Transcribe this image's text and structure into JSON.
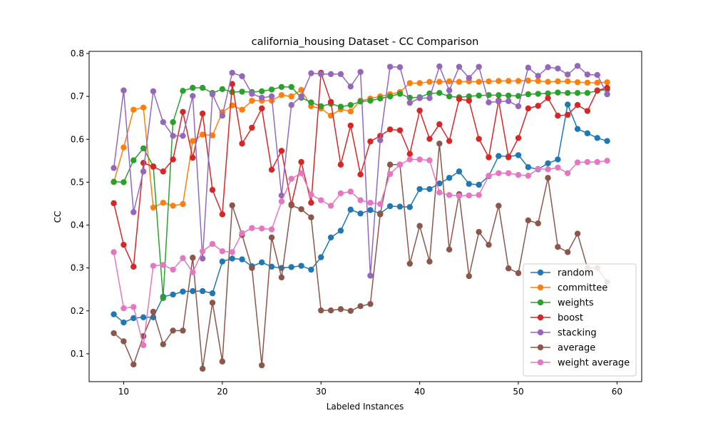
{
  "chart_data": {
    "type": "line",
    "title": "california_housing Dataset - CC Comparison",
    "xlabel": "Labeled Instances",
    "ylabel": "CC",
    "xlim": [
      6.5,
      62.5
    ],
    "ylim": [
      0.035,
      0.805
    ],
    "xticks": [
      10,
      20,
      30,
      40,
      50,
      60
    ],
    "yticks": [
      0.1,
      0.2,
      0.3,
      0.4,
      0.5,
      0.6,
      0.7,
      0.8
    ],
    "legend_position": "lower right",
    "grid": false,
    "x": [
      9,
      10,
      11,
      12,
      13,
      14,
      15,
      16,
      17,
      18,
      19,
      20,
      21,
      22,
      23,
      24,
      25,
      26,
      27,
      28,
      29,
      30,
      31,
      32,
      33,
      34,
      35,
      36,
      37,
      38,
      39,
      40,
      41,
      42,
      43,
      44,
      45,
      46,
      47,
      48,
      49,
      50,
      51,
      52,
      53,
      54,
      55,
      56,
      57,
      58,
      59
    ],
    "series": [
      {
        "name": "random",
        "color": "#1f77b4",
        "values": [
          0.192,
          0.173,
          0.183,
          0.185,
          0.185,
          0.233,
          0.238,
          0.245,
          0.246,
          0.246,
          0.241,
          0.315,
          0.322,
          0.32,
          0.304,
          0.313,
          0.303,
          0.3,
          0.302,
          0.305,
          0.296,
          0.325,
          0.371,
          0.387,
          0.436,
          0.427,
          0.435,
          0.427,
          0.444,
          0.443,
          0.442,
          0.484,
          0.484,
          0.497,
          0.51,
          0.525,
          0.496,
          0.494,
          0.514,
          0.561,
          0.56,
          0.563,
          0.535,
          0.53,
          0.544,
          0.553,
          0.681,
          0.624,
          0.614,
          0.603,
          0.596
        ]
      },
      {
        "name": "committee",
        "color": "#ff7f0e",
        "values": [
          0.5,
          0.581,
          0.669,
          0.674,
          0.441,
          0.452,
          0.445,
          0.449,
          0.596,
          0.611,
          0.609,
          0.663,
          0.679,
          0.669,
          0.69,
          0.69,
          0.69,
          0.703,
          0.7,
          0.715,
          0.677,
          0.672,
          0.655,
          0.67,
          0.665,
          0.69,
          0.695,
          0.7,
          0.705,
          0.71,
          0.731,
          0.731,
          0.734,
          0.734,
          0.735,
          0.734,
          0.735,
          0.734,
          0.735,
          0.736,
          0.736,
          0.736,
          0.737,
          0.736,
          0.734,
          0.735,
          0.735,
          0.733,
          0.732,
          0.732,
          0.733
        ]
      },
      {
        "name": "weights",
        "color": "#2ca02c",
        "values": [
          0.501,
          0.5,
          0.551,
          0.579,
          0.537,
          0.23,
          0.64,
          0.713,
          0.72,
          0.72,
          0.708,
          0.717,
          0.71,
          0.711,
          0.71,
          0.712,
          0.716,
          0.722,
          0.722,
          0.697,
          0.686,
          0.677,
          0.683,
          0.676,
          0.68,
          0.688,
          0.69,
          0.695,
          0.7,
          0.706,
          0.697,
          0.698,
          0.707,
          0.708,
          0.7,
          0.698,
          0.7,
          0.702,
          0.703,
          0.703,
          0.702,
          0.701,
          0.705,
          0.706,
          0.707,
          0.709,
          0.708,
          0.708,
          0.708,
          0.713,
          0.716
        ]
      },
      {
        "name": "boost",
        "color": "#d62728",
        "values": [
          0.451,
          0.354,
          0.303,
          0.545,
          0.536,
          0.525,
          0.553,
          0.664,
          0.557,
          0.66,
          0.482,
          0.425,
          0.729,
          0.59,
          0.627,
          0.672,
          0.529,
          0.573,
          0.448,
          0.547,
          0.452,
          0.755,
          0.687,
          0.541,
          0.632,
          0.518,
          0.595,
          0.608,
          0.623,
          0.621,
          0.566,
          0.667,
          0.601,
          0.635,
          0.596,
          0.694,
          0.69,
          0.601,
          0.558,
          0.69,
          0.558,
          0.603,
          0.672,
          0.678,
          0.696,
          0.655,
          0.657,
          0.68,
          0.666,
          0.714,
          0.72
        ]
      },
      {
        "name": "stacking",
        "color": "#9467bd",
        "values": [
          0.533,
          0.714,
          0.43,
          0.525,
          0.712,
          0.64,
          0.608,
          0.608,
          0.701,
          0.322,
          0.705,
          0.655,
          0.755,
          0.747,
          0.706,
          0.697,
          0.7,
          0.469,
          0.68,
          0.7,
          0.754,
          0.752,
          0.752,
          0.752,
          0.723,
          0.757,
          0.282,
          0.598,
          0.769,
          0.768,
          0.685,
          0.696,
          0.696,
          0.77,
          0.714,
          0.769,
          0.743,
          0.769,
          0.686,
          0.688,
          0.689,
          0.677,
          0.767,
          0.748,
          0.768,
          0.765,
          0.751,
          0.771,
          0.751,
          0.75,
          0.705
        ]
      },
      {
        "name": "average",
        "color": "#8c564b",
        "values": [
          0.148,
          0.129,
          0.075,
          0.141,
          0.198,
          0.122,
          0.154,
          0.154,
          0.324,
          0.065,
          0.219,
          0.082,
          0.446,
          0.377,
          0.3,
          0.073,
          0.371,
          0.278,
          0.446,
          0.437,
          0.418,
          0.201,
          0.201,
          0.204,
          0.2,
          0.211,
          0.216,
          0.425,
          0.541,
          0.541,
          0.31,
          0.398,
          0.315,
          0.59,
          0.343,
          0.472,
          0.281,
          0.384,
          0.354,
          0.445,
          0.299,
          0.288,
          0.411,
          0.404,
          0.51,
          0.349,
          0.337,
          0.38,
          0.3,
          0.3,
          0.267
        ]
      },
      {
        "name": "weight average",
        "color": "#e377c2",
        "values": [
          0.337,
          0.206,
          0.209,
          0.12,
          0.305,
          0.307,
          0.296,
          0.323,
          0.29,
          0.339,
          0.356,
          0.339,
          0.337,
          0.381,
          0.393,
          0.392,
          0.39,
          0.455,
          0.508,
          0.521,
          0.471,
          0.458,
          0.445,
          0.474,
          0.478,
          0.458,
          0.452,
          0.449,
          0.519,
          0.541,
          0.553,
          0.553,
          0.551,
          0.476,
          0.47,
          0.468,
          0.469,
          0.47,
          0.515,
          0.521,
          0.521,
          0.517,
          0.515,
          0.531,
          0.53,
          0.534,
          0.521,
          0.546,
          0.547,
          0.547,
          0.55
        ]
      }
    ]
  }
}
